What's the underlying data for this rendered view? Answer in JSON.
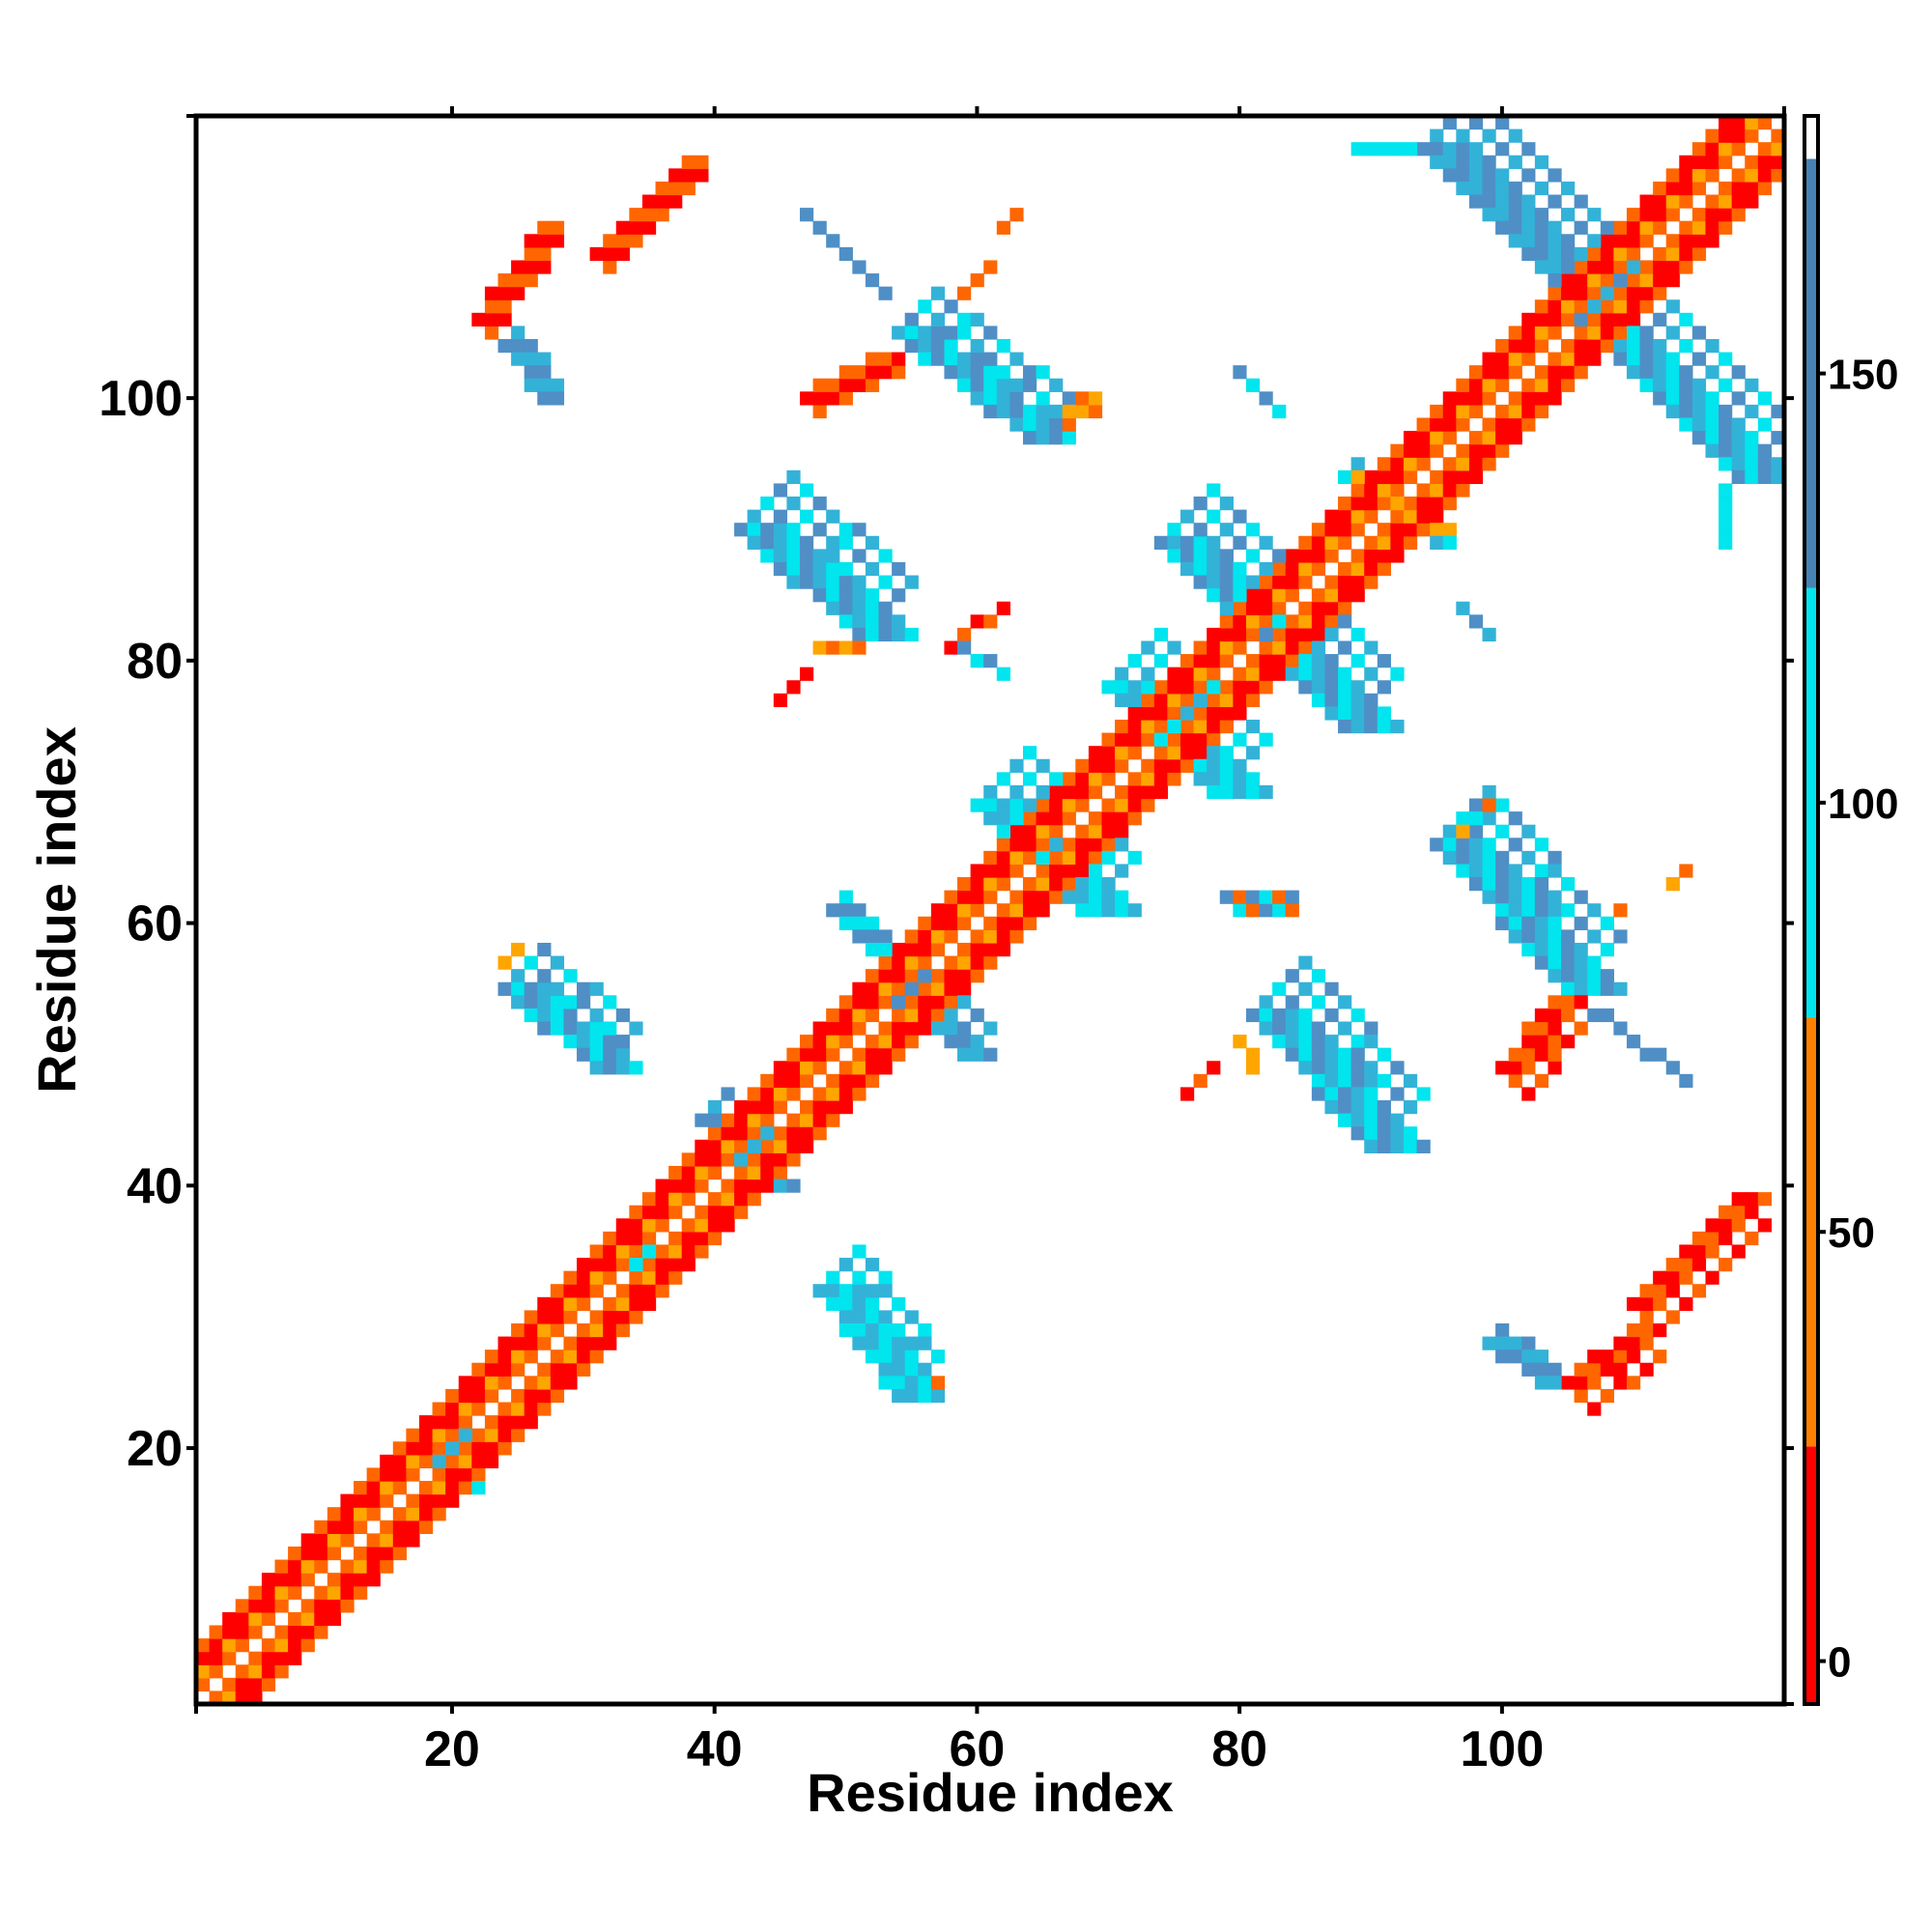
{
  "chart_data": {
    "type": "heatmap",
    "title": "",
    "xlabel": "Residue index",
    "ylabel": "Residue index",
    "xlim": [
      0.5,
      121.5
    ],
    "ylim": [
      0.5,
      121.5
    ],
    "x_ticks": [
      20,
      40,
      60,
      80,
      100
    ],
    "x_tick_labels": [
      "20",
      "40",
      "60",
      "80",
      "100"
    ],
    "y_ticks": [
      20,
      40,
      60,
      80,
      100
    ],
    "y_tick_labels": [
      "20",
      "40",
      "60",
      "80",
      "100"
    ],
    "grid": false,
    "legend": "colorbar-right",
    "colorbar": {
      "range": [
        -5,
        180
      ],
      "ticks": [
        0,
        50,
        100,
        150
      ],
      "tick_labels": [
        "0",
        "50",
        "100",
        "150"
      ],
      "bands": [
        {
          "from": -5,
          "to": 25,
          "color": "#ff0000"
        },
        {
          "from": 25,
          "to": 75,
          "color": "#ff8000"
        },
        {
          "from": 75,
          "to": 125,
          "color": "#00e5ee"
        },
        {
          "from": 125,
          "to": 175,
          "color": "#4682b4"
        },
        {
          "from": 175,
          "to": 180,
          "color": "#ffffff"
        }
      ]
    },
    "cell_colors": {
      "r": "#ff0000",
      "o": "#ff6600",
      "y": "#ffa500",
      "c": "#00e5ee",
      "l": "#33b2d8",
      "b": "#4f8fc6"
    },
    "regions": [
      {
        "kind": "diag",
        "x1": 1,
        "y1": 1,
        "x2": 121,
        "y2": 121,
        "colors": [
          "o",
          "r",
          "y"
        ]
      },
      {
        "kind": "band",
        "x1": 22,
        "y1": 106,
        "x2": 27,
        "y2": 113,
        "w": 2,
        "colors": [
          "r",
          "o"
        ]
      },
      {
        "kind": "band",
        "x1": 31,
        "y1": 111,
        "x2": 38,
        "y2": 118,
        "w": 2,
        "colors": [
          "r",
          "o"
        ]
      },
      {
        "kind": "band",
        "x1": 24,
        "y1": 104,
        "x2": 27,
        "y2": 100,
        "w": 2,
        "colors": [
          "b",
          "l"
        ]
      },
      {
        "kind": "band",
        "x1": 47,
        "y1": 100,
        "x2": 53,
        "y2": 103,
        "w": 2,
        "colors": [
          "r",
          "o"
        ]
      },
      {
        "kind": "band",
        "x1": 54,
        "y1": 105,
        "x2": 64,
        "y2": 97,
        "w": 4,
        "colors": [
          "l",
          "b",
          "c"
        ]
      },
      {
        "kind": "band",
        "x1": 57,
        "y1": 106,
        "x2": 61,
        "y2": 110,
        "w": 1,
        "colors": [
          "o"
        ]
      },
      {
        "kind": "band",
        "x1": 62,
        "y1": 113,
        "x2": 63,
        "y2": 114,
        "w": 1,
        "colors": [
          "o"
        ]
      },
      {
        "kind": "band",
        "x1": 64,
        "y1": 98,
        "x2": 68,
        "y2": 100,
        "w": 2,
        "colors": [
          "y",
          "o"
        ]
      },
      {
        "kind": "band",
        "x1": 47,
        "y1": 114,
        "x2": 53,
        "y2": 108,
        "w": 1,
        "colors": [
          "b"
        ]
      },
      {
        "kind": "band",
        "x1": 80,
        "y1": 102,
        "x2": 83,
        "y2": 99,
        "w": 1,
        "colors": [
          "b",
          "c"
        ]
      },
      {
        "kind": "band",
        "x1": 94,
        "y1": 119,
        "x2": 105,
        "y2": 108,
        "w": 5,
        "colors": [
          "b",
          "l"
        ]
      },
      {
        "kind": "band",
        "x1": 89,
        "y1": 119,
        "x2": 93,
        "y2": 119,
        "w": 1,
        "colors": [
          "c"
        ]
      },
      {
        "kind": "band",
        "x1": 106,
        "y1": 106,
        "x2": 118,
        "y2": 94,
        "w": 5,
        "colors": [
          "b",
          "l",
          "c"
        ]
      },
      {
        "kind": "band",
        "x1": 117,
        "y1": 93,
        "x2": 117,
        "y2": 89,
        "w": 1,
        "colors": [
          "c"
        ]
      },
      {
        "kind": "band",
        "x1": 88,
        "y1": 94,
        "x2": 95,
        "y2": 89,
        "w": 2,
        "colors": [
          "c",
          "l",
          "y"
        ]
      },
      {
        "kind": "band",
        "x1": 42,
        "y1": 90,
        "x2": 51,
        "y2": 82,
        "w": 5,
        "colors": [
          "b",
          "l",
          "c"
        ]
      },
      {
        "kind": "band",
        "x1": 48,
        "y1": 81,
        "x2": 51,
        "y2": 81,
        "w": 1,
        "colors": [
          "y",
          "o"
        ]
      },
      {
        "kind": "band",
        "x1": 45,
        "y1": 77,
        "x2": 47,
        "y2": 79,
        "w": 1,
        "colors": [
          "r"
        ]
      },
      {
        "kind": "band",
        "x1": 58,
        "y1": 81,
        "x2": 62,
        "y2": 84,
        "w": 1,
        "colors": [
          "r",
          "o"
        ]
      },
      {
        "kind": "band",
        "x1": 58,
        "y1": 81,
        "x2": 62,
        "y2": 79,
        "w": 1,
        "colors": [
          "c",
          "b"
        ]
      },
      {
        "kind": "band",
        "x1": 74,
        "y1": 89,
        "x2": 81,
        "y2": 82,
        "w": 5,
        "colors": [
          "b",
          "c",
          "l"
        ]
      },
      {
        "kind": "band",
        "x1": 82,
        "y1": 81,
        "x2": 88,
        "y2": 75,
        "w": 5,
        "colors": [
          "b",
          "c",
          "l"
        ]
      },
      {
        "kind": "band",
        "x1": 70,
        "y1": 78,
        "x2": 78,
        "y2": 70,
        "w": 5,
        "colors": [
          "c",
          "l"
        ]
      },
      {
        "kind": "band",
        "x1": 60,
        "y1": 69,
        "x2": 68,
        "y2": 61,
        "w": 5,
        "colors": [
          "c",
          "l"
        ]
      },
      {
        "kind": "band",
        "x1": 97,
        "y1": 84,
        "x2": 99,
        "y2": 82,
        "w": 1,
        "colors": [
          "l",
          "b"
        ]
      },
      {
        "kind": "band",
        "x1": 24,
        "y1": 55,
        "x2": 31,
        "y2": 49,
        "w": 4,
        "colors": [
          "b",
          "l",
          "c"
        ]
      },
      {
        "kind": "band",
        "x1": 24,
        "y1": 57,
        "x2": 25,
        "y2": 58,
        "w": 1,
        "colors": [
          "y"
        ]
      },
      {
        "kind": "band",
        "x1": 49,
        "y1": 61,
        "x2": 53,
        "y2": 57,
        "w": 2,
        "colors": [
          "b",
          "c"
        ]
      },
      {
        "kind": "band",
        "x1": 53,
        "y1": 55,
        "x2": 59,
        "y2": 50,
        "w": 3,
        "colors": [
          "l",
          "b"
        ]
      },
      {
        "kind": "band",
        "x1": 39,
        "y1": 45,
        "x2": 44,
        "y2": 40,
        "w": 3,
        "colors": [
          "b",
          "l"
        ]
      },
      {
        "kind": "band",
        "x1": 18,
        "y1": 20,
        "x2": 20,
        "y2": 17,
        "w": 3,
        "colors": [
          "c",
          "l"
        ]
      },
      {
        "kind": "band",
        "x1": 33,
        "y1": 35,
        "x2": 35,
        "y2": 33,
        "w": 2,
        "colors": [
          "c"
        ]
      },
      {
        "kind": "band",
        "x1": 48,
        "y1": 32,
        "x2": 54,
        "y2": 24,
        "w": 4,
        "colors": [
          "l",
          "c"
        ]
      },
      {
        "kind": "band",
        "x1": 54,
        "y1": 26,
        "x2": 57,
        "y2": 25,
        "w": 1,
        "colors": [
          "y",
          "o"
        ]
      },
      {
        "kind": "band",
        "x1": 79,
        "y1": 62,
        "x2": 83,
        "y2": 62,
        "w": 2,
        "colors": [
          "b",
          "c",
          "o"
        ]
      },
      {
        "kind": "band",
        "x1": 81,
        "y1": 53,
        "x2": 90,
        "y2": 43,
        "w": 5,
        "colors": [
          "b",
          "l",
          "c"
        ]
      },
      {
        "kind": "band",
        "x1": 76,
        "y1": 47,
        "x2": 78,
        "y2": 49,
        "w": 1,
        "colors": [
          "r",
          "o"
        ]
      },
      {
        "kind": "band",
        "x1": 80,
        "y1": 51,
        "x2": 81,
        "y2": 49,
        "w": 1,
        "colors": [
          "y"
        ]
      },
      {
        "kind": "band",
        "x1": 95,
        "y1": 66,
        "x2": 105,
        "y2": 55,
        "w": 5,
        "colors": [
          "b",
          "l",
          "c"
        ]
      },
      {
        "kind": "band",
        "x1": 95,
        "y1": 66,
        "x2": 98,
        "y2": 69,
        "w": 2,
        "colors": [
          "y",
          "c",
          "o"
        ]
      },
      {
        "kind": "band",
        "x1": 100,
        "y1": 49,
        "x2": 104,
        "y2": 54,
        "w": 3,
        "colors": [
          "r",
          "o"
        ]
      },
      {
        "kind": "band",
        "x1": 106,
        "y1": 58,
        "x2": 109,
        "y2": 61,
        "w": 1,
        "colors": [
          "o"
        ]
      },
      {
        "kind": "band",
        "x1": 113,
        "y1": 63,
        "x2": 114,
        "y2": 64,
        "w": 1,
        "colors": [
          "y",
          "o"
        ]
      },
      {
        "kind": "band",
        "x1": 106,
        "y1": 54,
        "x2": 114,
        "y2": 48,
        "w": 1,
        "colors": [
          "b"
        ]
      },
      {
        "kind": "band",
        "x1": 105,
        "y1": 25,
        "x2": 110,
        "y2": 29,
        "w": 3,
        "colors": [
          "r",
          "o"
        ]
      },
      {
        "kind": "band",
        "x1": 110,
        "y1": 31,
        "x2": 118,
        "y2": 39,
        "w": 3,
        "colors": [
          "r",
          "o"
        ]
      },
      {
        "kind": "band",
        "x1": 99,
        "y1": 28,
        "x2": 103,
        "y2": 25,
        "w": 2,
        "colors": [
          "l",
          "b"
        ]
      }
    ]
  }
}
